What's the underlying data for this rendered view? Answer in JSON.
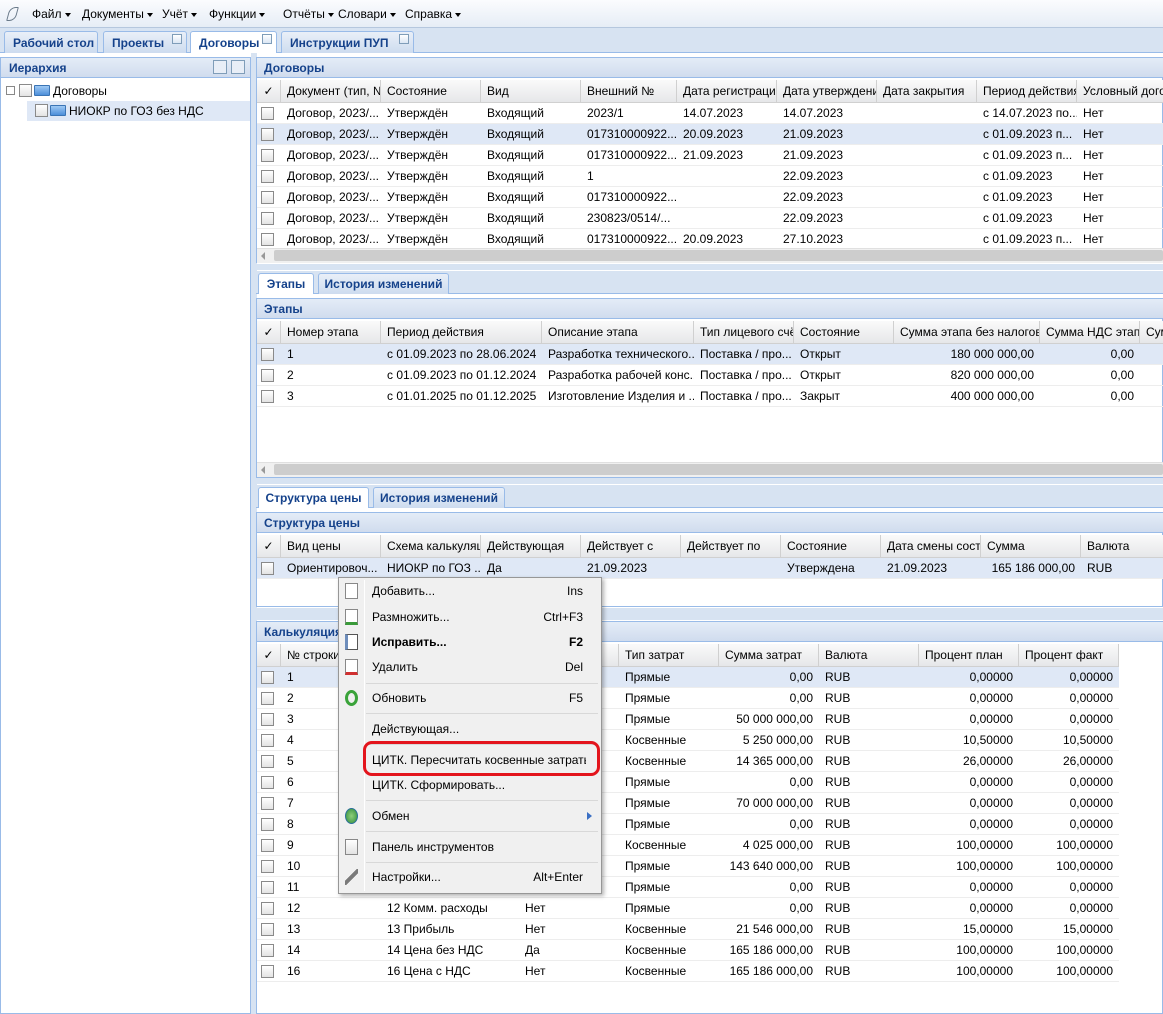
{
  "menu": [
    "Файл",
    "Документы",
    "Учёт",
    "Функции",
    "Отчёты",
    "Словари",
    "Справка"
  ],
  "tabs": {
    "items": [
      "Рабочий стол",
      "Проекты",
      "Договоры",
      "Инструкции ПУП"
    ],
    "closable": [
      false,
      true,
      true,
      true
    ],
    "active": 2
  },
  "hierarchy": {
    "title": "Иерархия",
    "nodes": [
      "Договоры",
      "НИОКР по ГОЗ без НДС"
    ]
  },
  "contracts": {
    "title": "Договоры",
    "columns": [
      "✓",
      "Документ (тип, №",
      "Состояние",
      "Вид",
      "Внешний №",
      "Дата регистрации...",
      "Дата утверждения",
      "Дата закрытия",
      "Период действия...",
      "Условный догов"
    ],
    "rows": [
      [
        "Договор, 2023/...",
        "Утверждён",
        "Входящий",
        "2023/1",
        "14.07.2023",
        "14.07.2023",
        null,
        "с 14.07.2023 по...",
        "Нет"
      ],
      [
        "Договор, 2023/...",
        "Утверждён",
        "Входящий",
        "017310000922...",
        "20.09.2023",
        "21.09.2023",
        null,
        "с 01.09.2023 п...",
        "Нет"
      ],
      [
        "Договор, 2023/...",
        "Утверждён",
        "Входящий",
        "017310000922...",
        "21.09.2023",
        "21.09.2023",
        null,
        "с 01.09.2023 п...",
        "Нет"
      ],
      [
        "Договор, 2023/...",
        "Утверждён",
        "Входящий",
        "1",
        null,
        "22.09.2023",
        null,
        "с 01.09.2023",
        "Нет"
      ],
      [
        "Договор, 2023/...",
        "Утверждён",
        "Входящий",
        "017310000922...",
        null,
        "22.09.2023",
        null,
        "с 01.09.2023",
        "Нет"
      ],
      [
        "Договор, 2023/...",
        "Утверждён",
        "Входящий",
        "230823/0514/...",
        null,
        "22.09.2023",
        null,
        "с 01.09.2023",
        "Нет"
      ],
      [
        "Договор, 2023/...",
        "Утверждён",
        "Входящий",
        "017310000922...",
        "20.09.2023",
        "27.10.2023",
        null,
        "с 01.09.2023 п...",
        "Нет"
      ]
    ],
    "selected": 1
  },
  "stage_tabs": [
    "Этапы",
    "История изменений"
  ],
  "stages": {
    "title": "Этапы",
    "columns": [
      "✓",
      "Номер этапа",
      "Период действия",
      "Описание этапа",
      "Тип лицевого счёт",
      "Состояние",
      "Сумма этапа без налогов",
      "Сумма НДС этапа",
      "Сум"
    ],
    "rows": [
      [
        "1",
        "с 01.09.2023 по 28.06.2024",
        "Разработка технического...",
        "Поставка / про...",
        "Открыт",
        "180 000 000,00",
        "0,00"
      ],
      [
        "2",
        "с 01.09.2023 по 01.12.2024",
        "Разработка рабочей конс...",
        "Поставка / про...",
        "Открыт",
        "820 000 000,00",
        "0,00"
      ],
      [
        "3",
        "с 01.01.2025 по 01.12.2025",
        "Изготовление Изделия и ...",
        "Поставка / про...",
        "Закрыт",
        "400 000 000,00",
        "0,00"
      ]
    ],
    "selected": 0
  },
  "price_tabs": [
    "Структура цены",
    "История изменений"
  ],
  "price": {
    "title": "Структура цены",
    "columns": [
      "✓",
      "Вид цены",
      "Схема калькуляци",
      "Действующая",
      "Действует с",
      "Действует по",
      "Состояние",
      "Дата смены состоя",
      "Сумма",
      "Валюта"
    ],
    "rows": [
      [
        "Ориентировоч...",
        "НИОКР по ГОЗ ...",
        "Да",
        "21.09.2023",
        null,
        "Утверждена",
        "21.09.2023",
        "165 186 000,00",
        "RUB"
      ]
    ],
    "selected": 0
  },
  "calc": {
    "title": "Калькуляция",
    "columns": [
      "✓",
      "№ строки",
      null,
      null,
      "Тип затрат",
      "Сумма затрат",
      "Валюта",
      "Процент план",
      "Процент факт"
    ],
    "rows": [
      [
        "1",
        null,
        null,
        "Прямые",
        "0,00",
        "RUB",
        "0,00000",
        "0,00000"
      ],
      [
        "2",
        null,
        null,
        "Прямые",
        "0,00",
        "RUB",
        "0,00000",
        "0,00000"
      ],
      [
        "3",
        null,
        null,
        "Прямые",
        "50 000 000,00",
        "RUB",
        "0,00000",
        "0,00000"
      ],
      [
        "4",
        null,
        null,
        "Косвенные",
        "5 250 000,00",
        "RUB",
        "10,50000",
        "10,50000"
      ],
      [
        "5",
        null,
        null,
        "Косвенные",
        "14 365 000,00",
        "RUB",
        "26,00000",
        "26,00000"
      ],
      [
        "6",
        null,
        null,
        "Прямые",
        "0,00",
        "RUB",
        "0,00000",
        "0,00000"
      ],
      [
        "7",
        null,
        null,
        "Прямые",
        "70 000 000,00",
        "RUB",
        "0,00000",
        "0,00000"
      ],
      [
        "8",
        null,
        null,
        "Прямые",
        "0,00",
        "RUB",
        "0,00000",
        "0,00000"
      ],
      [
        "9",
        null,
        null,
        "Косвенные",
        "4 025 000,00",
        "RUB",
        "100,00000",
        "100,00000"
      ],
      [
        "10",
        null,
        null,
        "Прямые",
        "143 640 000,00",
        "RUB",
        "100,00000",
        "100,00000"
      ],
      [
        "11",
        null,
        null,
        "Прямые",
        "0,00",
        "RUB",
        "0,00000",
        "0,00000"
      ],
      [
        "12",
        "12 Комм. расходы",
        "Нет",
        "Прямые",
        "0,00",
        "RUB",
        "0,00000",
        "0,00000"
      ],
      [
        "13",
        "13 Прибыль",
        "Нет",
        "Косвенные",
        "21 546 000,00",
        "RUB",
        "15,00000",
        "15,00000"
      ],
      [
        "14",
        "14 Цена без НДС",
        "Да",
        "Косвенные",
        "165 186 000,00",
        "RUB",
        "100,00000",
        "100,00000"
      ],
      [
        "16",
        "16 Цена с НДС",
        "Нет",
        "Косвенные",
        "165 186 000,00",
        "RUB",
        "100,00000",
        "100,00000"
      ]
    ],
    "selected": 0
  },
  "context_menu": {
    "items": [
      {
        "label": "Добавить...",
        "shortcut": "Ins"
      },
      {
        "label": "Размножить...",
        "shortcut": "Ctrl+F3"
      },
      {
        "label": "Исправить...",
        "shortcut": "F2"
      },
      {
        "label": "Удалить",
        "shortcut": "Del"
      },
      {
        "label": "Обновить",
        "shortcut": "F5"
      },
      {
        "label": "Действующая...",
        "shortcut": null
      },
      {
        "label": "ЦИТК. Пересчитать косвенные затраты...",
        "shortcut": null
      },
      {
        "label": "ЦИТК. Сформировать...",
        "shortcut": null
      },
      {
        "label": "Обмен",
        "shortcut": null
      },
      {
        "label": "Панель инструментов",
        "shortcut": null
      },
      {
        "label": "Настройки...",
        "shortcut": "Alt+Enter"
      }
    ],
    "highlighted": 6
  }
}
